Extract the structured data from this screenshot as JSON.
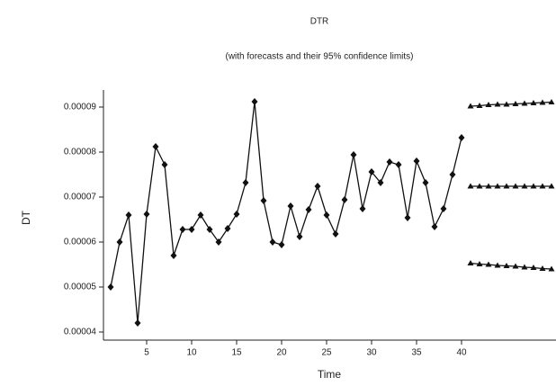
{
  "chart_data": {
    "type": "line",
    "title": "DTR",
    "subtitle": "(with forecasts and their 95% confidence limits)",
    "y_label": "DT",
    "x_label": "Time",
    "xlim": [
      0.2,
      50.5
    ],
    "ylim": [
      3.82e-05,
      9.38e-05
    ],
    "xticks": [
      5,
      10,
      15,
      20,
      25,
      30,
      35,
      40
    ],
    "yticks": [
      4e-05,
      5e-05,
      6e-05,
      7e-05,
      8e-05,
      9e-05
    ],
    "series": [
      {
        "color": "#111111",
        "marker": "diamond",
        "x": [
          1,
          2,
          3,
          4,
          5,
          6,
          7,
          8,
          9,
          10,
          11,
          12,
          13,
          14,
          15,
          16,
          17,
          18,
          19,
          20,
          21,
          22,
          23,
          24,
          25,
          26,
          27,
          28,
          29,
          30,
          31,
          32,
          33,
          34,
          35,
          36,
          37,
          38,
          39,
          40
        ],
        "values": [
          5e-05,
          6e-05,
          6.6e-05,
          4.2e-05,
          6.62e-05,
          8.12e-05,
          7.72e-05,
          5.7e-05,
          6.28e-05,
          6.28e-05,
          6.6e-05,
          6.28e-05,
          6e-05,
          6.3e-05,
          6.62e-05,
          7.32e-05,
          9.12e-05,
          6.92e-05,
          6e-05,
          5.94e-05,
          6.8e-05,
          6.12e-05,
          6.72e-05,
          7.24e-05,
          6.6e-05,
          6.18e-05,
          6.94e-05,
          7.94e-05,
          6.74e-05,
          7.56e-05,
          7.32e-05,
          7.78e-05,
          7.72e-05,
          6.54e-05,
          7.8e-05,
          7.32e-05,
          6.34e-05,
          6.74e-05,
          7.5e-05,
          8.32e-05
        ]
      },
      {
        "color": "#111111",
        "marker": "triangle",
        "x": [
          41,
          42,
          43,
          44,
          45,
          46,
          47,
          48,
          49,
          50
        ],
        "values": [
          9.02e-05,
          9.03e-05,
          9.05e-05,
          9.06e-05,
          9.06e-05,
          9.07e-05,
          9.08e-05,
          9.09e-05,
          9.1e-05,
          9.11e-05
        ]
      },
      {
        "color": "#111111",
        "marker": "triangle",
        "x": [
          41,
          42,
          43,
          44,
          45,
          46,
          47,
          48,
          49,
          50
        ],
        "values": [
          7.24e-05,
          7.24e-05,
          7.24e-05,
          7.24e-05,
          7.24e-05,
          7.24e-05,
          7.24e-05,
          7.24e-05,
          7.24e-05,
          7.24e-05
        ]
      },
      {
        "color": "#111111",
        "marker": "triangle",
        "x": [
          41,
          42,
          43,
          44,
          45,
          46,
          47,
          48,
          49,
          50
        ],
        "values": [
          5.53e-05,
          5.51e-05,
          5.5e-05,
          5.48e-05,
          5.47e-05,
          5.46e-05,
          5.44e-05,
          5.43e-05,
          5.41e-05,
          5.4e-05
        ]
      }
    ]
  }
}
